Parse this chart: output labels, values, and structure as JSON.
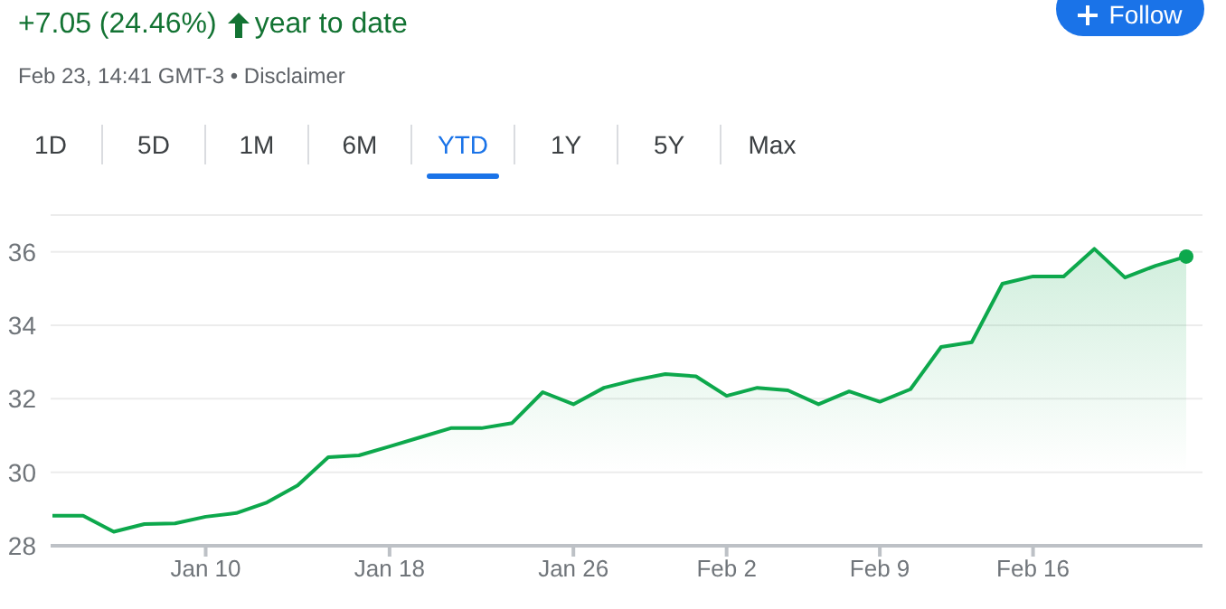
{
  "chart_data": {
    "type": "area",
    "title": "+7.05 (24.46%)",
    "subtitle": "year to date",
    "annotations": [
      "Feb 23, 14:41 GMT-3 • Disclaimer",
      "1D",
      "5D",
      "1M",
      "6M",
      "YTD",
      "1Y",
      "5Y",
      "Max",
      "Follow"
    ],
    "categories": [
      null,
      null,
      null,
      null,
      null,
      "Jan 10",
      null,
      null,
      null,
      null,
      null,
      "Jan 18",
      null,
      null,
      null,
      null,
      null,
      "Jan 26",
      null,
      null,
      null,
      null,
      "Feb 2",
      null,
      null,
      null,
      null,
      "Feb 9",
      null,
      null,
      null,
      null,
      "Feb 16",
      null,
      null,
      null,
      null,
      null
    ],
    "series": [
      {
        "color": "#0da84c",
        "values": [
          28.82,
          28.82,
          28.38,
          28.59,
          28.61,
          28.79,
          28.89,
          29.18,
          29.64,
          30.41,
          30.46,
          30.7,
          30.95,
          31.2,
          31.2,
          31.34,
          32.18,
          31.85,
          32.3,
          32.51,
          32.67,
          32.61,
          32.08,
          32.3,
          32.23,
          31.85,
          32.2,
          31.92,
          32.26,
          33.41,
          33.54,
          35.13,
          35.33,
          35.33,
          36.08,
          35.3,
          35.62,
          35.87
        ]
      }
    ],
    "ylim": [
      28,
      37
    ],
    "yticks": [
      28,
      30,
      32,
      34,
      36
    ],
    "grid": "y",
    "legend": false
  }
}
